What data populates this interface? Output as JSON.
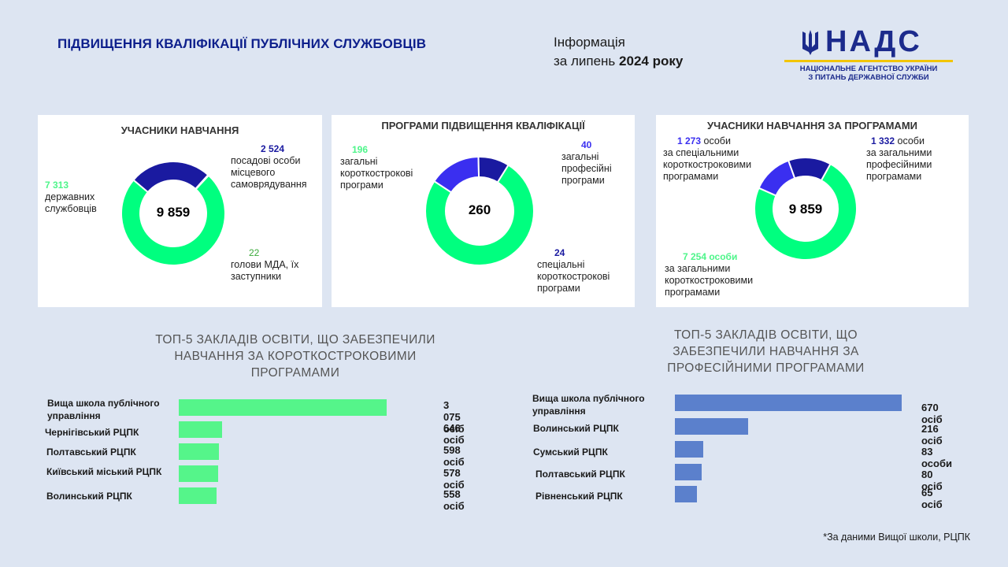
{
  "header": {
    "title": "ПІДВИЩЕННЯ КВАЛІФІКАЦІЇ ПУБЛІЧНИХ СЛУЖБОВЦІВ",
    "info_line1": "Інформація",
    "info_line2_prefix": "за липень ",
    "info_line2_bold": "2024 року"
  },
  "logo": {
    "abbr": "НАДС",
    "line1": "НАЦІОНАЛЬНЕ АГЕНТСТВО УКРАЇНИ",
    "line2": "З ПИТАНЬ ДЕРЖАВНОЇ СЛУЖБИ"
  },
  "colors": {
    "green": "#00ff7f",
    "navy": "#1a1aa0",
    "blue": "#3a2ff0",
    "steel": "#5a6f9e",
    "bar_green": "#55f58a",
    "bar_blue": "#5b80cc"
  },
  "chart_data": [
    {
      "type": "pie",
      "variant": "donut",
      "title": "УЧАСНИКИ НАВЧАННЯ",
      "center": "9 859",
      "slices": [
        {
          "value_label": "7 313",
          "value": 7313,
          "label": "державних службовців",
          "color": "#00ff7f"
        },
        {
          "value_label": "2 524",
          "value": 2524,
          "label": "посадові особи місцевого самоврядування",
          "color": "#1a1aa0"
        },
        {
          "value_label": "22",
          "value": 22,
          "label": "голови МДА, їх заступники",
          "color": "#5a6f9e"
        }
      ]
    },
    {
      "type": "pie",
      "variant": "donut",
      "title": "ПРОГРАМИ ПІДВИЩЕННЯ КВАЛІФІКАЦІЇ",
      "center": "260",
      "slices": [
        {
          "value_label": "196",
          "value": 196,
          "label": "загальні короткострокові програми",
          "color": "#00ff7f"
        },
        {
          "value_label": "40",
          "value": 40,
          "label": "загальні професійні програми",
          "color": "#3a2ff0"
        },
        {
          "value_label": "24",
          "value": 24,
          "label": "спеціальні короткострокові програми",
          "color": "#1a1aa0"
        }
      ]
    },
    {
      "type": "pie",
      "variant": "donut",
      "title": "УЧАСНИКИ НАВЧАННЯ ЗА ПРОГРАМАМИ",
      "center": "9 859",
      "slices": [
        {
          "value_label": "7 254 особи",
          "value": 7254,
          "label": "за загальними короткостроковими програмами",
          "color": "#00ff7f"
        },
        {
          "value_label": "1 273",
          "value": 1273,
          "label_suffix": "особи",
          "label": "за спеціальними короткостроковими програмами",
          "color": "#3a2ff0"
        },
        {
          "value_label": "1 332",
          "value": 1332,
          "label_suffix": "особи",
          "label": "за загальними професійними програмами",
          "color": "#1a1aa0"
        }
      ]
    },
    {
      "type": "bar",
      "orientation": "horizontal",
      "title": "ТОП-5 ЗАКЛАДІВ ОСВІТИ, ЩО ЗАБЕЗПЕЧИЛИ НАВЧАННЯ ЗА КОРОТКОСТРОКОВИМИ ПРОГРАМАМИ",
      "categories": [
        "Вища школа публічного управління",
        "Чернігівський РЦПК",
        "Полтавський РЦПК",
        "Київський міський РЦПК",
        "Волинський РЦПК"
      ],
      "values": [
        3075,
        646,
        598,
        578,
        558
      ],
      "value_labels": [
        "3 075 осіб",
        "646 осіб",
        "598 осіб",
        "578 осіб",
        "558 осіб"
      ],
      "color": "#55f58a"
    },
    {
      "type": "bar",
      "orientation": "horizontal",
      "title": "ТОП-5 ЗАКЛАДІВ ОСВІТИ, ЩО ЗАБЕЗПЕЧИЛИ НАВЧАННЯ ЗА ПРОФЕСІЙНИМИ ПРОГРАМАМИ",
      "categories": [
        "Вища школа публічного управління",
        "Волинський РЦПК",
        "Сумський РЦПК",
        "Полтавський РЦПК",
        "Рівненський РЦПК"
      ],
      "values": [
        670,
        216,
        83,
        80,
        65
      ],
      "value_labels": [
        "670 осіб",
        "216 осіб",
        "83 особи",
        "80 осіб",
        "65 осіб"
      ],
      "color": "#5b80cc"
    }
  ],
  "footnote": "*За даними Вищої школи, РЦПК"
}
